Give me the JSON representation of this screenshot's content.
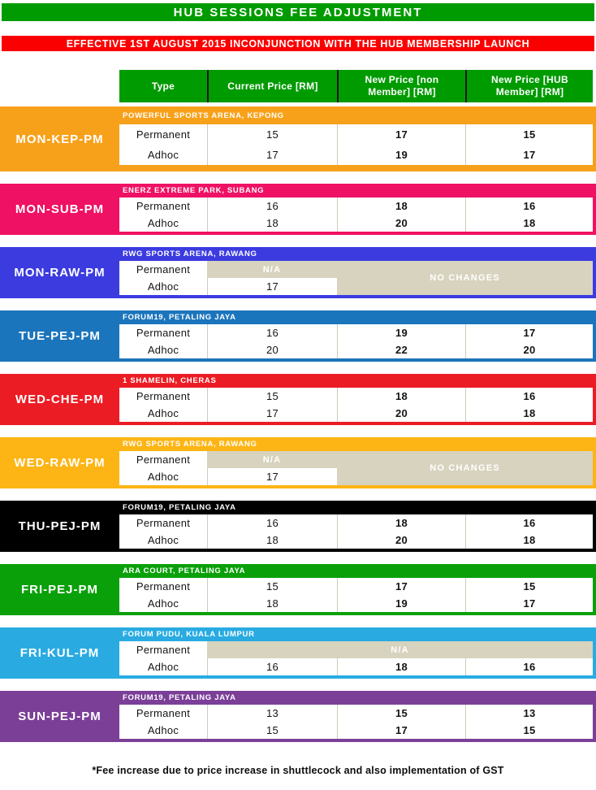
{
  "title": "HUB SESSIONS FEE ADJUSTMENT",
  "banner": "EFFECTIVE 1ST AUGUST 2015 INCONJUNCTION WITH THE HUB MEMBERSHIP LAUNCH",
  "columns": [
    "Type",
    "Current Price [RM]",
    "New Price [non Member] [RM]",
    "New Price [HUB Member] [RM]"
  ],
  "footnote": "*Fee increase due to price increase in shuttlecock and also implementation of GST",
  "colors": {
    "header_green": "#009B00",
    "banner_red": "#FB0000",
    "muted_beige": "#D8D3BE",
    "divider_gray": "#CFCBBB"
  },
  "sessions": [
    {
      "id": "MON-KEP-PM",
      "color": "#F7A11B",
      "venue": "POWERFUL SPORTS ARENA, KEPONG",
      "tall": true,
      "cells": [
        {
          "text": "Permanent",
          "col": 1,
          "row": 1
        },
        {
          "text": "15",
          "col": 2,
          "row": 1
        },
        {
          "text": "17",
          "col": 3,
          "row": 1
        },
        {
          "text": "15",
          "col": 4,
          "row": 1
        },
        {
          "text": "Adhoc",
          "col": 1,
          "row": 2
        },
        {
          "text": "17",
          "col": 2,
          "row": 2
        },
        {
          "text": "19",
          "col": 3,
          "row": 2
        },
        {
          "text": "17",
          "col": 4,
          "row": 2
        }
      ]
    },
    {
      "id": "MON-SUB-PM",
      "color": "#EF1164",
      "venue": "ENERZ EXTREME PARK, SUBANG",
      "cells": [
        {
          "text": "Permanent",
          "col": 1,
          "row": 1
        },
        {
          "text": "16",
          "col": 2,
          "row": 1
        },
        {
          "text": "18",
          "col": 3,
          "row": 1
        },
        {
          "text": "16",
          "col": 4,
          "row": 1
        },
        {
          "text": "Adhoc",
          "col": 1,
          "row": 2
        },
        {
          "text": "18",
          "col": 2,
          "row": 2
        },
        {
          "text": "20",
          "col": 3,
          "row": 2
        },
        {
          "text": "18",
          "col": 4,
          "row": 2
        }
      ]
    },
    {
      "id": "MON-RAW-PM",
      "color": "#3B3BE0",
      "venue": "RWG SPORTS ARENA, RAWANG",
      "cells": [
        {
          "text": "Permanent",
          "col": 1,
          "row": 1
        },
        {
          "text": "N/A",
          "col": 2,
          "row": 1,
          "variant": "muted"
        },
        {
          "text": "NO CHANGES",
          "col": 3,
          "row": 1,
          "colspan": 2,
          "rowspan": 2,
          "variant": "muted"
        },
        {
          "text": "Adhoc",
          "col": 1,
          "row": 2
        },
        {
          "text": "17",
          "col": 2,
          "row": 2
        }
      ]
    },
    {
      "id": "TUE-PEJ-PM",
      "color": "#1B75BC",
      "venue": "FORUM19, PETALING JAYA",
      "cells": [
        {
          "text": "Permanent",
          "col": 1,
          "row": 1
        },
        {
          "text": "16",
          "col": 2,
          "row": 1
        },
        {
          "text": "19",
          "col": 3,
          "row": 1
        },
        {
          "text": "17",
          "col": 4,
          "row": 1
        },
        {
          "text": "Adhoc",
          "col": 1,
          "row": 2
        },
        {
          "text": "20",
          "col": 2,
          "row": 2
        },
        {
          "text": "22",
          "col": 3,
          "row": 2
        },
        {
          "text": "20",
          "col": 4,
          "row": 2
        }
      ]
    },
    {
      "id": "WED-CHE-PM",
      "color": "#EC1C24",
      "venue": "1 SHAMELIN, CHERAS",
      "cells": [
        {
          "text": "Permanent",
          "col": 1,
          "row": 1
        },
        {
          "text": "15",
          "col": 2,
          "row": 1
        },
        {
          "text": "18",
          "col": 3,
          "row": 1
        },
        {
          "text": "16",
          "col": 4,
          "row": 1
        },
        {
          "text": "Adhoc",
          "col": 1,
          "row": 2
        },
        {
          "text": "17",
          "col": 2,
          "row": 2
        },
        {
          "text": "20",
          "col": 3,
          "row": 2
        },
        {
          "text": "18",
          "col": 4,
          "row": 2
        }
      ]
    },
    {
      "id": "WED-RAW-PM",
      "color": "#FDB515",
      "venue": "RWG SPORTS ARENA, RAWANG",
      "cells": [
        {
          "text": "Permanent",
          "col": 1,
          "row": 1
        },
        {
          "text": "N/A",
          "col": 2,
          "row": 1,
          "variant": "muted"
        },
        {
          "text": "NO CHANGES",
          "col": 3,
          "row": 1,
          "colspan": 2,
          "rowspan": 2,
          "variant": "muted"
        },
        {
          "text": "Adhoc",
          "col": 1,
          "row": 2
        },
        {
          "text": "17",
          "col": 2,
          "row": 2
        }
      ]
    },
    {
      "id": "THU-PEJ-PM",
      "color": "#000000",
      "venue": "FORUM19, PETALING JAYA",
      "cells": [
        {
          "text": "Permanent",
          "col": 1,
          "row": 1
        },
        {
          "text": "16",
          "col": 2,
          "row": 1
        },
        {
          "text": "18",
          "col": 3,
          "row": 1
        },
        {
          "text": "16",
          "col": 4,
          "row": 1
        },
        {
          "text": "Adhoc",
          "col": 1,
          "row": 2
        },
        {
          "text": "18",
          "col": 2,
          "row": 2
        },
        {
          "text": "20",
          "col": 3,
          "row": 2
        },
        {
          "text": "18",
          "col": 4,
          "row": 2
        }
      ]
    },
    {
      "id": "FRI-PEJ-PM",
      "color": "#0AA00A",
      "venue": "ARA COURT, PETALING JAYA",
      "cells": [
        {
          "text": "Permanent",
          "col": 1,
          "row": 1
        },
        {
          "text": "15",
          "col": 2,
          "row": 1
        },
        {
          "text": "17",
          "col": 3,
          "row": 1
        },
        {
          "text": "15",
          "col": 4,
          "row": 1
        },
        {
          "text": "Adhoc",
          "col": 1,
          "row": 2
        },
        {
          "text": "18",
          "col": 2,
          "row": 2
        },
        {
          "text": "19",
          "col": 3,
          "row": 2
        },
        {
          "text": "17",
          "col": 4,
          "row": 2
        }
      ]
    },
    {
      "id": "FRI-KUL-PM",
      "color": "#29ABE2",
      "venue": "FORUM PUDU, KUALA LUMPUR",
      "cells": [
        {
          "text": "Permanent",
          "col": 1,
          "row": 1
        },
        {
          "text": "N/A",
          "col": 2,
          "row": 1,
          "colspan": 3,
          "variant": "muted"
        },
        {
          "text": "Adhoc",
          "col": 1,
          "row": 2
        },
        {
          "text": "16",
          "col": 2,
          "row": 2
        },
        {
          "text": "18",
          "col": 3,
          "row": 2
        },
        {
          "text": "16",
          "col": 4,
          "row": 2
        }
      ]
    },
    {
      "id": "SUN-PEJ-PM",
      "color": "#7B3F98",
      "venue": "FORUM19, PETALING JAYA",
      "cells": [
        {
          "text": "Permanent",
          "col": 1,
          "row": 1
        },
        {
          "text": "13",
          "col": 2,
          "row": 1
        },
        {
          "text": "15",
          "col": 3,
          "row": 1
        },
        {
          "text": "13",
          "col": 4,
          "row": 1
        },
        {
          "text": "Adhoc",
          "col": 1,
          "row": 2
        },
        {
          "text": "15",
          "col": 2,
          "row": 2
        },
        {
          "text": "17",
          "col": 3,
          "row": 2
        },
        {
          "text": "15",
          "col": 4,
          "row": 2
        }
      ]
    }
  ]
}
